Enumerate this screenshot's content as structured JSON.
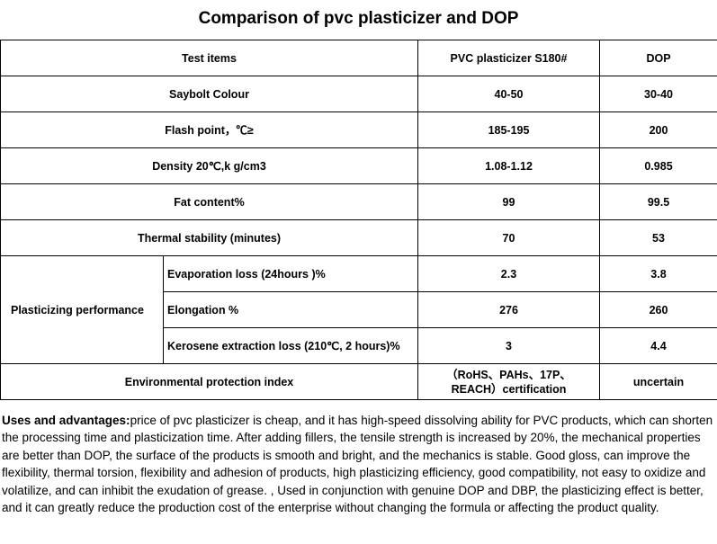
{
  "title": "Comparison of pvc plasticizer and DOP",
  "table": {
    "headers": {
      "test_items": "Test items",
      "product": "PVC plasticizer S180#",
      "dop": "DOP"
    },
    "rows": [
      {
        "item": "Saybolt Colour",
        "product": "40-50",
        "dop": "30-40"
      },
      {
        "item": "Flash point，℃≥",
        "product": "185-195",
        "dop": "200"
      },
      {
        "item": "Density 20℃,k g/cm3",
        "product": "1.08-1.12",
        "dop": "0.985"
      },
      {
        "item": "Fat content%",
        "product": "99",
        "dop": "99.5"
      },
      {
        "item": "Thermal stability (minutes)",
        "product": "70",
        "dop": "53"
      }
    ],
    "plasticizing": {
      "group_label": "Plasticizing performance",
      "rows": [
        {
          "item": "Evaporation loss (24hours )%",
          "product": "2.3",
          "dop": "3.8"
        },
        {
          "item": "Elongation %",
          "product": "276",
          "dop": "260"
        },
        {
          "item": "Kerosene extraction loss (210℃, 2 hours)%",
          "product": "3",
          "dop": "4.4"
        }
      ]
    },
    "environment": {
      "item": "Environmental protection index",
      "product_line1": "（RoHS、PAHs、17P、",
      "product_line2": "REACH）certification",
      "dop": "uncertain"
    }
  },
  "description": {
    "lead": "Uses and advantages:",
    "text": "price of pvc plasticizer is cheap, and it has high-speed dissolving ability for PVC products, which can shorten the processing time and plasticization time. After adding fillers, the tensile strength is increased by 20%, the mechanical properties are better than DOP, the surface of the products is smooth and bright, and the mechanics is stable. Good gloss, can improve the flexibility, thermal torsion, flexibility and adhesion of products, high plasticizing efficiency, good compatibility, not easy to oxidize and volatilize, and can inhibit the exudation of grease. , Used in conjunction with genuine DOP and DBP, the plasticizing effect is better, and it can greatly reduce the production cost of the enterprise without changing the formula or affecting the product quality."
  }
}
